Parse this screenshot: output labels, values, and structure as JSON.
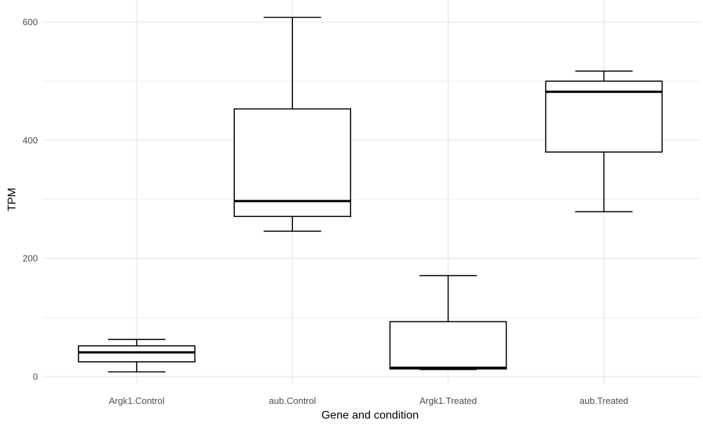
{
  "chart_data": {
    "type": "box",
    "xlabel": "Gene and condition",
    "ylabel": "TPM",
    "ylim": [
      -5,
      640
    ],
    "yticks": [
      0,
      200,
      400,
      600
    ],
    "grid": true,
    "categories": [
      "Argk1.Control",
      "aub.Control",
      "Argk1.Treated",
      "aub.Treated"
    ],
    "boxes": [
      {
        "category": "Argk1.Control",
        "min": 8,
        "q1": 25,
        "median": 41,
        "q3": 52,
        "max": 63
      },
      {
        "category": "aub.Control",
        "min": 246,
        "q1": 271,
        "median": 297,
        "q3": 453,
        "max": 608
      },
      {
        "category": "Argk1.Treated",
        "min": 12,
        "q1": 13,
        "median": 15,
        "q3": 93,
        "max": 171
      },
      {
        "category": "aub.Treated",
        "min": 279,
        "q1": 380,
        "median": 482,
        "q3": 500,
        "max": 517
      }
    ],
    "colors": {
      "grid": "#ebebeb",
      "box_stroke": "#000000",
      "box_fill": "#ffffff",
      "tick_text": "#4d4d4d"
    }
  }
}
